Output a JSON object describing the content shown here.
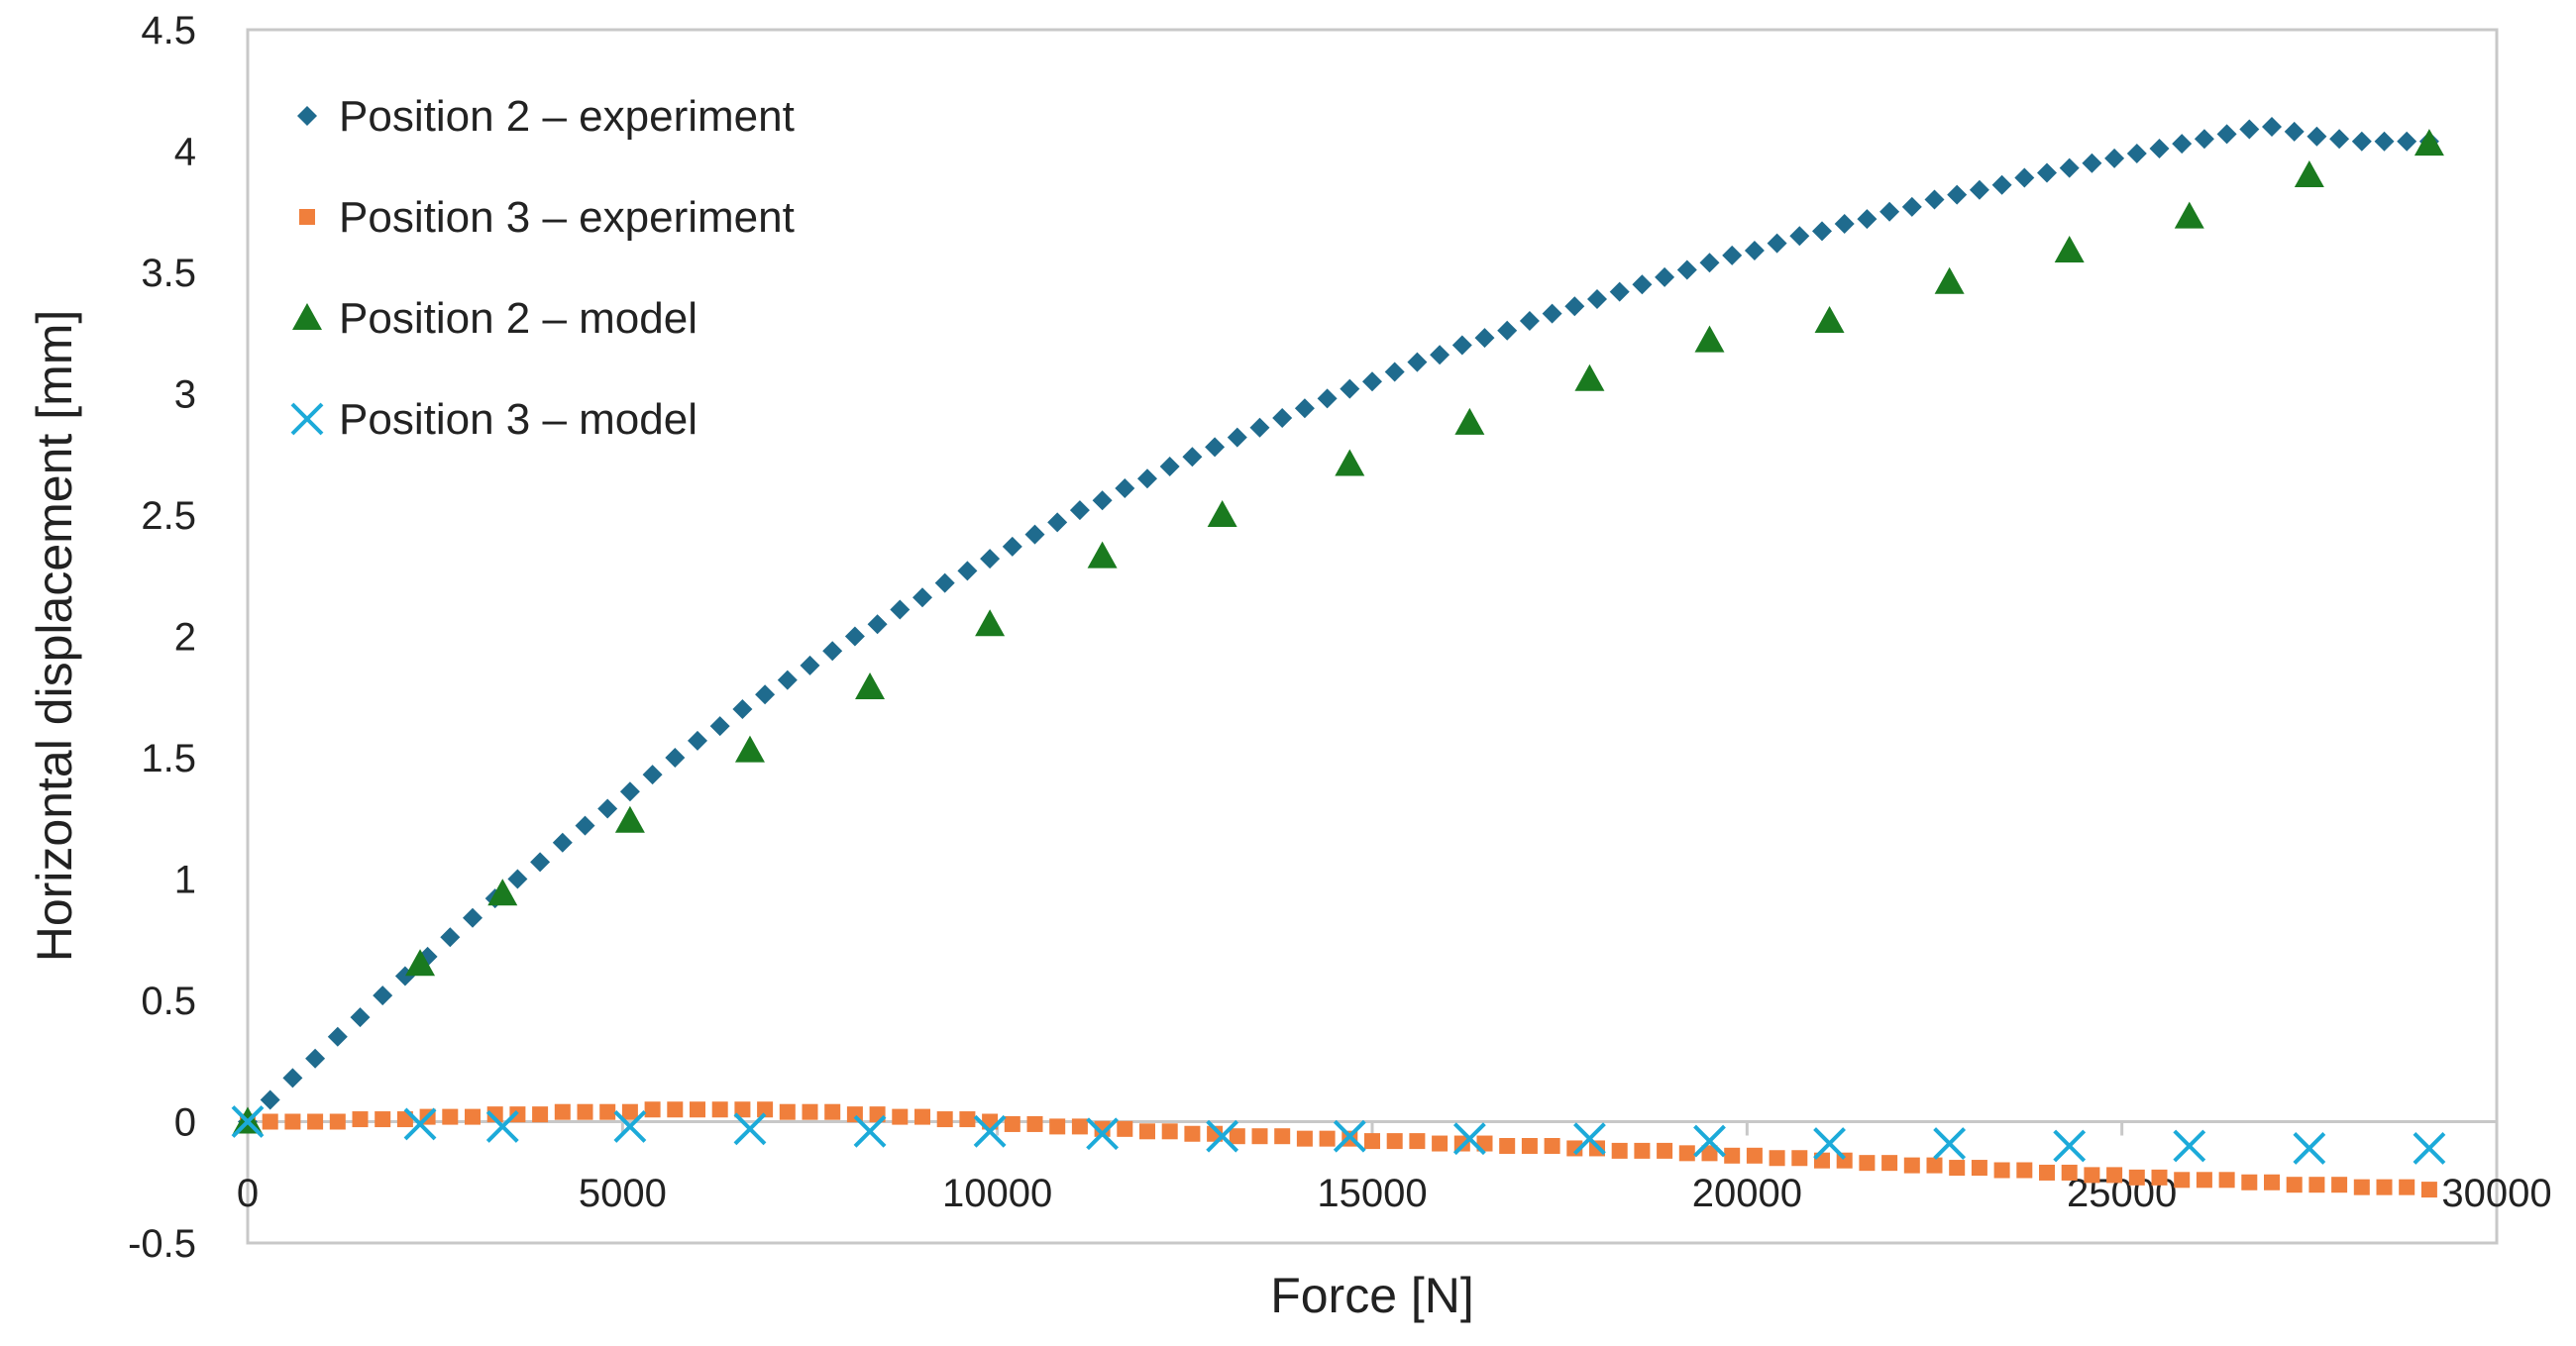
{
  "chart_data": {
    "type": "scatter",
    "xlabel": "Force [N]",
    "ylabel": "Horizontal displacement [mm]",
    "xlim": [
      0,
      30000
    ],
    "ylim": [
      -0.5,
      4.5
    ],
    "xticks": [
      0,
      5000,
      10000,
      15000,
      20000,
      25000,
      30000
    ],
    "yticks": [
      4.5,
      4,
      3.5,
      3,
      2.5,
      2,
      1.5,
      1,
      0.5,
      0,
      -0.5
    ],
    "ytick_labels": [
      "4.5",
      "4",
      "3.5",
      "3",
      "2.5",
      "2",
      "1.5",
      "1",
      "0.5",
      "0",
      "-0.5"
    ],
    "legend_position": "top-left",
    "grid": false,
    "series": [
      {
        "name": "Position 2 – experiment",
        "marker": "diamond",
        "color": "#1F6B8E",
        "x": [
          0,
          300,
          600,
          900,
          1200,
          1500,
          1800,
          2100,
          2400,
          2700,
          3000,
          3300,
          3600,
          3900,
          4200,
          4500,
          4800,
          5100,
          5400,
          5700,
          6000,
          6300,
          6600,
          6900,
          7200,
          7500,
          7800,
          8100,
          8400,
          8700,
          9000,
          9300,
          9600,
          9900,
          10200,
          10500,
          10800,
          11100,
          11400,
          11700,
          12000,
          12300,
          12600,
          12900,
          13200,
          13500,
          13800,
          14100,
          14400,
          14700,
          15000,
          15300,
          15600,
          15900,
          16200,
          16500,
          16800,
          17100,
          17400,
          17700,
          18000,
          18300,
          18600,
          18900,
          19200,
          19500,
          19800,
          20100,
          20400,
          20700,
          21000,
          21300,
          21600,
          21900,
          22200,
          22500,
          22800,
          23100,
          23400,
          23700,
          24000,
          24300,
          24600,
          24900,
          25200,
          25500,
          25800,
          26100,
          26400,
          26700,
          27000,
          27300,
          27600,
          27900,
          28200,
          28500,
          28800,
          29100
        ],
        "y": [
          0,
          0.09,
          0.18,
          0.26,
          0.35,
          0.43,
          0.52,
          0.6,
          0.68,
          0.76,
          0.84,
          0.92,
          1.0,
          1.07,
          1.15,
          1.22,
          1.29,
          1.36,
          1.43,
          1.5,
          1.57,
          1.63,
          1.7,
          1.76,
          1.82,
          1.88,
          1.94,
          2.0,
          2.05,
          2.11,
          2.16,
          2.22,
          2.27,
          2.32,
          2.37,
          2.42,
          2.47,
          2.52,
          2.56,
          2.61,
          2.65,
          2.7,
          2.74,
          2.78,
          2.82,
          2.86,
          2.9,
          2.94,
          2.98,
          3.02,
          3.05,
          3.09,
          3.13,
          3.16,
          3.2,
          3.23,
          3.26,
          3.3,
          3.33,
          3.36,
          3.39,
          3.42,
          3.45,
          3.48,
          3.51,
          3.54,
          3.57,
          3.59,
          3.62,
          3.65,
          3.67,
          3.7,
          3.72,
          3.75,
          3.77,
          3.8,
          3.82,
          3.84,
          3.86,
          3.89,
          3.91,
          3.93,
          3.95,
          3.97,
          3.99,
          4.01,
          4.03,
          4.05,
          4.07,
          4.09,
          4.1,
          4.08,
          4.06,
          4.05,
          4.04,
          4.04,
          4.04,
          4.04
        ]
      },
      {
        "name": "Position 3 – experiment",
        "marker": "square",
        "color": "#F07F3C",
        "x": [
          0,
          300,
          600,
          900,
          1200,
          1500,
          1800,
          2100,
          2400,
          2700,
          3000,
          3300,
          3600,
          3900,
          4200,
          4500,
          4800,
          5100,
          5400,
          5700,
          6000,
          6300,
          6600,
          6900,
          7200,
          7500,
          7800,
          8100,
          8400,
          8700,
          9000,
          9300,
          9600,
          9900,
          10200,
          10500,
          10800,
          11100,
          11400,
          11700,
          12000,
          12300,
          12600,
          12900,
          13200,
          13500,
          13800,
          14100,
          14400,
          14700,
          15000,
          15300,
          15600,
          15900,
          16200,
          16500,
          16800,
          17100,
          17400,
          17700,
          18000,
          18300,
          18600,
          18900,
          19200,
          19500,
          19800,
          20100,
          20400,
          20700,
          21000,
          21300,
          21600,
          21900,
          22200,
          22500,
          22800,
          23100,
          23400,
          23700,
          24000,
          24300,
          24600,
          24900,
          25200,
          25500,
          25800,
          26100,
          26400,
          26700,
          27000,
          27300,
          27600,
          27900,
          28200,
          28500,
          28800,
          29100
        ],
        "y": [
          0,
          0,
          0,
          0,
          0,
          0.01,
          0.01,
          0.01,
          0.02,
          0.02,
          0.02,
          0.03,
          0.03,
          0.03,
          0.04,
          0.04,
          0.04,
          0.04,
          0.05,
          0.05,
          0.05,
          0.05,
          0.05,
          0.05,
          0.04,
          0.04,
          0.04,
          0.03,
          0.03,
          0.02,
          0.02,
          0.01,
          0.01,
          0.0,
          -0.01,
          -0.01,
          -0.02,
          -0.02,
          -0.03,
          -0.03,
          -0.04,
          -0.04,
          -0.05,
          -0.05,
          -0.06,
          -0.06,
          -0.06,
          -0.07,
          -0.07,
          -0.07,
          -0.08,
          -0.08,
          -0.08,
          -0.09,
          -0.09,
          -0.09,
          -0.1,
          -0.1,
          -0.1,
          -0.11,
          -0.11,
          -0.12,
          -0.12,
          -0.12,
          -0.13,
          -0.13,
          -0.14,
          -0.14,
          -0.15,
          -0.15,
          -0.16,
          -0.16,
          -0.17,
          -0.17,
          -0.18,
          -0.18,
          -0.19,
          -0.19,
          -0.2,
          -0.2,
          -0.21,
          -0.21,
          -0.22,
          -0.22,
          -0.23,
          -0.23,
          -0.24,
          -0.24,
          -0.24,
          -0.25,
          -0.25,
          -0.26,
          -0.26,
          -0.26,
          -0.27,
          -0.27,
          -0.27,
          -0.28
        ]
      },
      {
        "name": "Position 2 – model",
        "marker": "triangle",
        "color": "#1A7A1F",
        "x": [
          0,
          2300,
          3400,
          5100,
          6700,
          8300,
          9900,
          11400,
          13000,
          14700,
          16300,
          17900,
          19500,
          21100,
          22700,
          24300,
          25900,
          27500,
          29100
        ],
        "y": [
          0,
          0.65,
          0.94,
          1.24,
          1.53,
          1.79,
          2.05,
          2.33,
          2.5,
          2.71,
          2.88,
          3.06,
          3.22,
          3.3,
          3.46,
          3.59,
          3.73,
          3.9,
          4.03
        ]
      },
      {
        "name": "Position 3 – model",
        "marker": "x",
        "color": "#1CAAD9",
        "x": [
          0,
          2300,
          3400,
          5100,
          6700,
          8300,
          9900,
          11400,
          13000,
          14700,
          16300,
          17900,
          19500,
          21100,
          22700,
          24300,
          25900,
          27500,
          29100
        ],
        "y": [
          0,
          -0.01,
          -0.02,
          -0.02,
          -0.03,
          -0.04,
          -0.04,
          -0.05,
          -0.06,
          -0.06,
          -0.07,
          -0.07,
          -0.08,
          -0.09,
          -0.09,
          -0.1,
          -0.1,
          -0.11,
          -0.11
        ]
      }
    ]
  }
}
